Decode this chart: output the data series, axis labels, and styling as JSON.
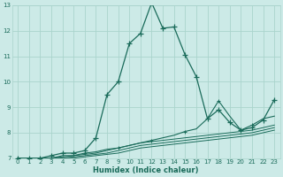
{
  "xlabel": "Humidex (Indice chaleur)",
  "xlim": [
    -0.5,
    23.5
  ],
  "ylim": [
    7,
    13
  ],
  "yticks": [
    7,
    8,
    9,
    10,
    11,
    12,
    13
  ],
  "xticks": [
    0,
    1,
    2,
    3,
    4,
    5,
    6,
    7,
    8,
    9,
    10,
    11,
    12,
    13,
    14,
    15,
    16,
    17,
    18,
    19,
    20,
    21,
    22,
    23
  ],
  "bg_color": "#cceae7",
  "grid_color": "#aad4cc",
  "line_color": "#1a6b5a",
  "lines": [
    [
      7.0,
      7.0,
      7.0,
      7.1,
      7.2,
      7.2,
      7.3,
      7.8,
      9.5,
      10.0,
      11.5,
      11.9,
      13.1,
      12.1,
      12.15,
      11.05,
      10.2,
      8.55,
      8.9,
      8.4,
      8.1,
      8.2,
      8.5,
      9.3
    ],
    [
      7.0,
      7.0,
      7.0,
      7.0,
      7.1,
      7.1,
      7.2,
      7.25,
      7.35,
      7.4,
      7.5,
      7.6,
      7.7,
      7.8,
      7.9,
      8.05,
      8.15,
      8.55,
      9.25,
      8.65,
      8.1,
      8.3,
      8.55,
      8.65
    ],
    [
      7.0,
      7.0,
      7.0,
      7.0,
      7.05,
      7.1,
      7.15,
      7.2,
      7.3,
      7.4,
      7.5,
      7.6,
      7.65,
      7.7,
      7.75,
      7.8,
      7.85,
      7.9,
      7.95,
      8.0,
      8.05,
      8.1,
      8.2,
      8.3
    ],
    [
      7.0,
      7.0,
      7.0,
      7.0,
      7.0,
      7.05,
      7.1,
      7.15,
      7.2,
      7.3,
      7.4,
      7.5,
      7.55,
      7.6,
      7.65,
      7.7,
      7.75,
      7.8,
      7.85,
      7.9,
      7.95,
      8.0,
      8.1,
      8.2
    ],
    [
      7.0,
      7.0,
      7.0,
      7.0,
      7.0,
      7.0,
      7.05,
      7.1,
      7.15,
      7.2,
      7.3,
      7.4,
      7.45,
      7.5,
      7.55,
      7.6,
      7.65,
      7.7,
      7.75,
      7.8,
      7.85,
      7.9,
      8.0,
      8.1
    ]
  ]
}
